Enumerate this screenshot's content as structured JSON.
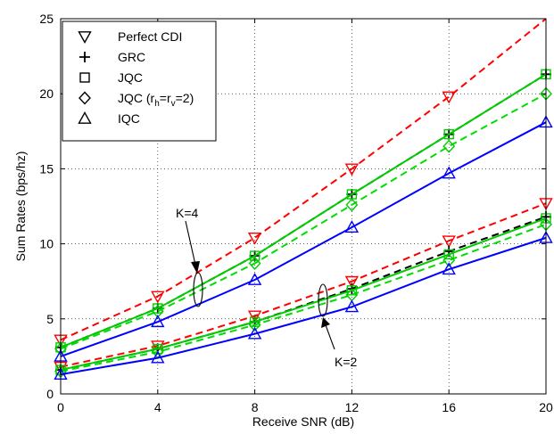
{
  "chart_data": {
    "type": "line",
    "xlabel": "Receive SNR (dB)",
    "ylabel": "Sum Rates (bps/hz)",
    "xlim": [
      0,
      20
    ],
    "ylim": [
      0,
      25
    ],
    "xticks": [
      0,
      4,
      8,
      12,
      16,
      20
    ],
    "yticks": [
      0,
      5,
      10,
      15,
      20,
      25
    ],
    "grid": true,
    "legend_position": "top-left",
    "legend": [
      {
        "label": "Perfect CDI",
        "marker": "triangle-down"
      },
      {
        "label": "GRC",
        "marker": "plus"
      },
      {
        "label": "JQC",
        "marker": "square"
      },
      {
        "label_parts": [
          "JQC (r",
          "h",
          "=r",
          "v",
          "=2)"
        ],
        "marker": "diamond"
      },
      {
        "label": "IQC",
        "marker": "triangle-up"
      }
    ],
    "annotations": [
      {
        "text": "K=4"
      },
      {
        "text": "K=2"
      }
    ],
    "series": [
      {
        "group": "K=4",
        "scheme": "Perfect CDI",
        "color": "#ff0000",
        "dash": "dashed",
        "marker": "triangle-down",
        "marker_color": "#ff0000",
        "x": [
          0,
          4,
          8,
          12,
          16,
          20
        ],
        "y": [
          3.6,
          6.5,
          10.4,
          15.0,
          19.8,
          25.0
        ],
        "marker_x": [
          0,
          4,
          8,
          12,
          16
        ]
      },
      {
        "group": "K=4",
        "scheme": "GRC",
        "color": "#000000",
        "dash": "dashed",
        "marker": "plus",
        "marker_color": "#000000",
        "x": [
          0,
          4,
          8,
          12,
          16,
          20
        ],
        "y": [
          3.1,
          5.7,
          9.2,
          13.3,
          17.3,
          21.3
        ]
      },
      {
        "group": "K=4",
        "scheme": "JQC",
        "color": "#00cc00",
        "dash": "solid",
        "marker": "square",
        "marker_color": "#00cc00",
        "x": [
          0,
          4,
          8,
          12,
          16,
          20
        ],
        "y": [
          3.1,
          5.7,
          9.2,
          13.3,
          17.3,
          21.3
        ]
      },
      {
        "group": "K=4",
        "scheme": "JQC (rh=rv=2)",
        "color": "#00dd00",
        "dash": "dashed",
        "marker": "diamond",
        "marker_color": "#00cc00",
        "x": [
          0,
          4,
          8,
          12,
          16,
          20
        ],
        "y": [
          3.0,
          5.5,
          8.7,
          12.6,
          16.5,
          20.0
        ]
      },
      {
        "group": "K=4",
        "scheme": "IQC",
        "color": "#0000ff",
        "dash": "solid",
        "marker": "triangle-up",
        "marker_color": "#0000ff",
        "x": [
          0,
          4,
          8,
          12,
          16,
          20
        ],
        "y": [
          2.5,
          4.8,
          7.6,
          11.1,
          14.7,
          18.1
        ]
      },
      {
        "group": "K=2",
        "scheme": "Perfect CDI",
        "color": "#ff0000",
        "dash": "dashed",
        "marker": "triangle-down",
        "marker_color": "#ff0000",
        "x": [
          0,
          4,
          8,
          12,
          16,
          20
        ],
        "y": [
          1.8,
          3.2,
          5.2,
          7.5,
          10.2,
          12.7
        ]
      },
      {
        "group": "K=2",
        "scheme": "GRC",
        "color": "#000000",
        "dash": "dashed",
        "marker": "plus",
        "marker_color": "#000000",
        "x": [
          0,
          4,
          8,
          12,
          16,
          20
        ],
        "y": [
          1.6,
          3.0,
          4.8,
          7.0,
          9.5,
          11.8
        ]
      },
      {
        "group": "K=2",
        "scheme": "JQC",
        "color": "#00cc00",
        "dash": "solid",
        "marker": "square",
        "marker_color": "#00cc00",
        "x": [
          0,
          4,
          8,
          12,
          16,
          20
        ],
        "y": [
          1.6,
          3.0,
          4.8,
          6.9,
          9.3,
          11.7
        ]
      },
      {
        "group": "K=2",
        "scheme": "JQC (rh=rv=2)",
        "color": "#00dd00",
        "dash": "dashed",
        "marker": "diamond",
        "marker_color": "#00cc00",
        "x": [
          0,
          4,
          8,
          12,
          16,
          20
        ],
        "y": [
          1.5,
          2.8,
          4.6,
          6.6,
          8.9,
          11.3
        ]
      },
      {
        "group": "K=2",
        "scheme": "IQC",
        "color": "#0000ff",
        "dash": "solid",
        "marker": "triangle-up",
        "marker_color": "#0000ff",
        "x": [
          0,
          4,
          8,
          12,
          16,
          20
        ],
        "y": [
          1.3,
          2.4,
          4.0,
          5.8,
          8.3,
          10.4
        ]
      }
    ]
  }
}
